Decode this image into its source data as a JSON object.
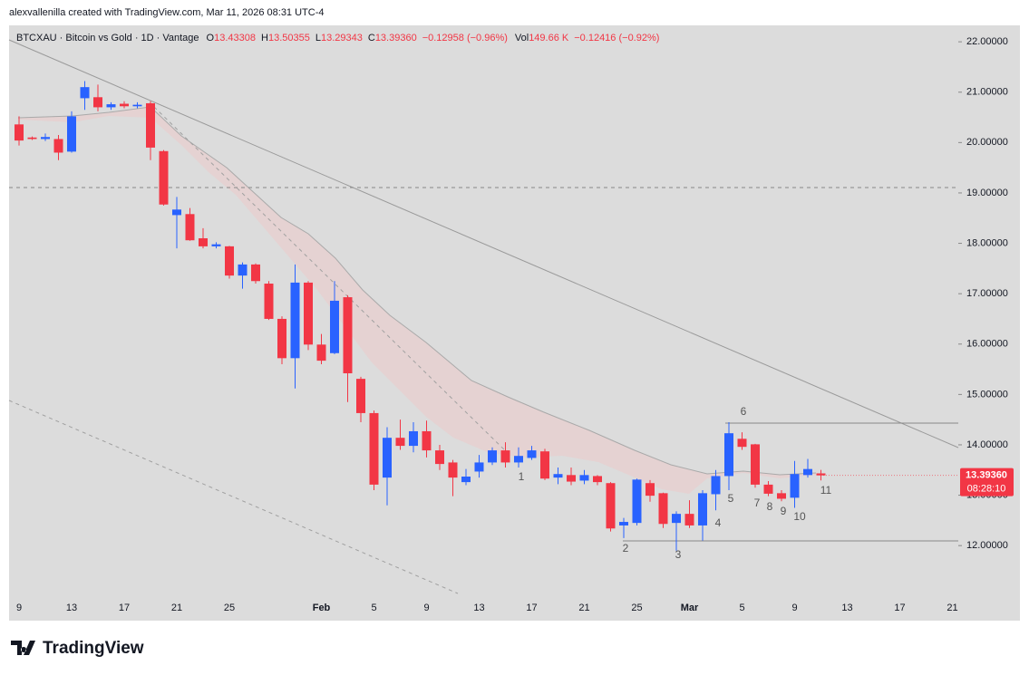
{
  "header": {
    "caption": "alexvallenilla created with TradingView.com, Mar 11, 2026 08:31 UTC-4",
    "brand": "TradingView"
  },
  "chart_data": {
    "type": "candlestick",
    "title": "BTCXAU · Bitcoin vs Gold · 1D · Vantage",
    "legend": [
      [
        "O",
        "13.43308"
      ],
      [
        "H",
        "13.50355"
      ],
      [
        "L",
        "13.29343"
      ],
      [
        "C",
        "13.39360"
      ]
    ],
    "change": "−0.12958 (−0.96%)",
    "volume_label": "Vol",
    "volume": "149.66 K",
    "volume_change": "−0.12416 (−0.92%)",
    "categories": [
      "9",
      null,
      null,
      null,
      "13",
      null,
      null,
      null,
      "17",
      null,
      null,
      null,
      "21",
      null,
      null,
      null,
      "25",
      null,
      null,
      null,
      null,
      null,
      null,
      "Feb",
      null,
      null,
      null,
      "5",
      null,
      null,
      null,
      "9",
      null,
      null,
      null,
      "13",
      null,
      null,
      null,
      "17",
      null,
      null,
      null,
      "21",
      null,
      null,
      null,
      "25",
      null,
      null,
      null,
      "Mar",
      null,
      null,
      null,
      "5",
      null,
      null,
      null,
      "9",
      null,
      null,
      null,
      "13",
      null,
      null,
      null,
      "17",
      null,
      null,
      null,
      "21"
    ],
    "open": [
      20.36,
      20.1,
      20.07,
      20.07,
      19.82,
      20.88,
      20.9,
      20.7,
      20.77,
      20.72,
      20.78,
      19.83,
      18.56,
      18.58,
      18.1,
      17.94,
      17.94,
      17.36,
      17.58,
      17.2,
      16.5,
      15.72,
      17.22,
      15.99,
      15.82,
      16.93,
      15.31,
      14.63,
      13.35,
      14.14,
      13.98,
      14.27,
      13.89,
      13.65,
      13.26,
      13.47,
      13.65,
      13.89,
      13.65,
      13.74,
      13.87,
      13.35,
      13.4,
      13.29,
      13.38,
      13.24,
      12.4,
      12.45,
      13.24,
      13.04,
      12.45,
      12.63,
      12.4,
      13.02,
      13.38,
      14.12,
      14.01,
      13.21,
      13.04,
      12.95,
      13.4,
      13.43308,
      null,
      null,
      null,
      null,
      null,
      null,
      null,
      null,
      null,
      null
    ],
    "high": [
      20.52,
      20.12,
      20.18,
      20.15,
      20.62,
      21.22,
      21.15,
      20.8,
      20.82,
      20.8,
      20.82,
      19.85,
      18.92,
      18.7,
      18.3,
      18.02,
      17.95,
      17.62,
      17.6,
      17.25,
      16.55,
      17.58,
      17.25,
      16.2,
      17.25,
      16.97,
      15.35,
      14.68,
      14.35,
      14.5,
      14.45,
      14.48,
      14.0,
      13.7,
      13.52,
      13.8,
      13.95,
      14.05,
      13.95,
      13.98,
      13.92,
      13.55,
      13.55,
      13.5,
      13.4,
      13.26,
      12.55,
      13.33,
      13.3,
      13.05,
      12.68,
      12.9,
      13.1,
      13.5,
      14.45,
      14.25,
      14.02,
      13.28,
      13.1,
      13.68,
      13.72,
      13.50355,
      null,
      null,
      null,
      null,
      null,
      null,
      null,
      null,
      null,
      null
    ],
    "low": [
      19.94,
      20.05,
      20.03,
      19.65,
      19.8,
      20.65,
      20.62,
      20.65,
      20.68,
      20.68,
      19.65,
      18.75,
      17.9,
      18.05,
      17.9,
      17.9,
      17.3,
      17.1,
      17.2,
      16.48,
      15.6,
      15.12,
      15.88,
      15.6,
      15.8,
      14.85,
      14.45,
      13.1,
      12.8,
      13.9,
      13.85,
      13.75,
      13.5,
      12.98,
      13.2,
      13.35,
      13.6,
      13.55,
      13.55,
      13.7,
      13.3,
      13.22,
      13.2,
      13.22,
      13.2,
      12.28,
      12.15,
      12.4,
      12.87,
      12.35,
      11.9,
      12.35,
      12.1,
      12.7,
      13.1,
      13.9,
      13.15,
      12.98,
      12.88,
      12.75,
      13.35,
      13.29343,
      null,
      null,
      null,
      null,
      null,
      null,
      null,
      null,
      null,
      null
    ],
    "close": [
      20.04,
      20.07,
      20.11,
      19.8,
      20.52,
      21.1,
      20.7,
      20.76,
      20.72,
      20.75,
      19.9,
      18.77,
      18.67,
      18.06,
      17.94,
      17.98,
      17.36,
      17.58,
      17.25,
      16.5,
      15.72,
      17.22,
      15.99,
      15.67,
      16.86,
      15.42,
      14.63,
      13.21,
      14.14,
      13.98,
      14.27,
      13.89,
      13.62,
      13.35,
      13.37,
      13.65,
      13.89,
      13.65,
      13.78,
      13.89,
      13.33,
      13.42,
      13.27,
      13.4,
      13.26,
      12.34,
      12.47,
      13.31,
      12.99,
      12.43,
      12.63,
      12.4,
      13.04,
      13.38,
      14.23,
      13.96,
      13.21,
      13.03,
      12.93,
      13.42,
      13.52,
      13.3936,
      null,
      null,
      null,
      null,
      null,
      null,
      null,
      null,
      null,
      null
    ],
    "up_color": "#2962ff",
    "down_color": "#f23645",
    "ylim": [
      11.05,
      22.29
    ],
    "yticks": [
      {
        "value": 12,
        "label": "12.00000"
      },
      {
        "value": 13,
        "label": "13.00000"
      },
      {
        "value": 14,
        "label": "14.00000"
      },
      {
        "value": 15,
        "label": "15.00000"
      },
      {
        "value": 16,
        "label": "16.00000"
      },
      {
        "value": 17,
        "label": "17.00000"
      },
      {
        "value": 18,
        "label": "18.00000"
      },
      {
        "value": 19,
        "label": "19.00000"
      },
      {
        "value": 20,
        "label": "20.00000"
      },
      {
        "value": 21,
        "label": "21.00000"
      },
      {
        "value": 22,
        "label": "22.00000"
      }
    ],
    "last_price": {
      "value": 13.3936,
      "label": "13.39360"
    },
    "countdown": "08:28:10",
    "annotations": [
      "1",
      "2",
      "3",
      "4",
      "5",
      "6",
      "7",
      "8",
      "9",
      "10",
      "11"
    ]
  }
}
